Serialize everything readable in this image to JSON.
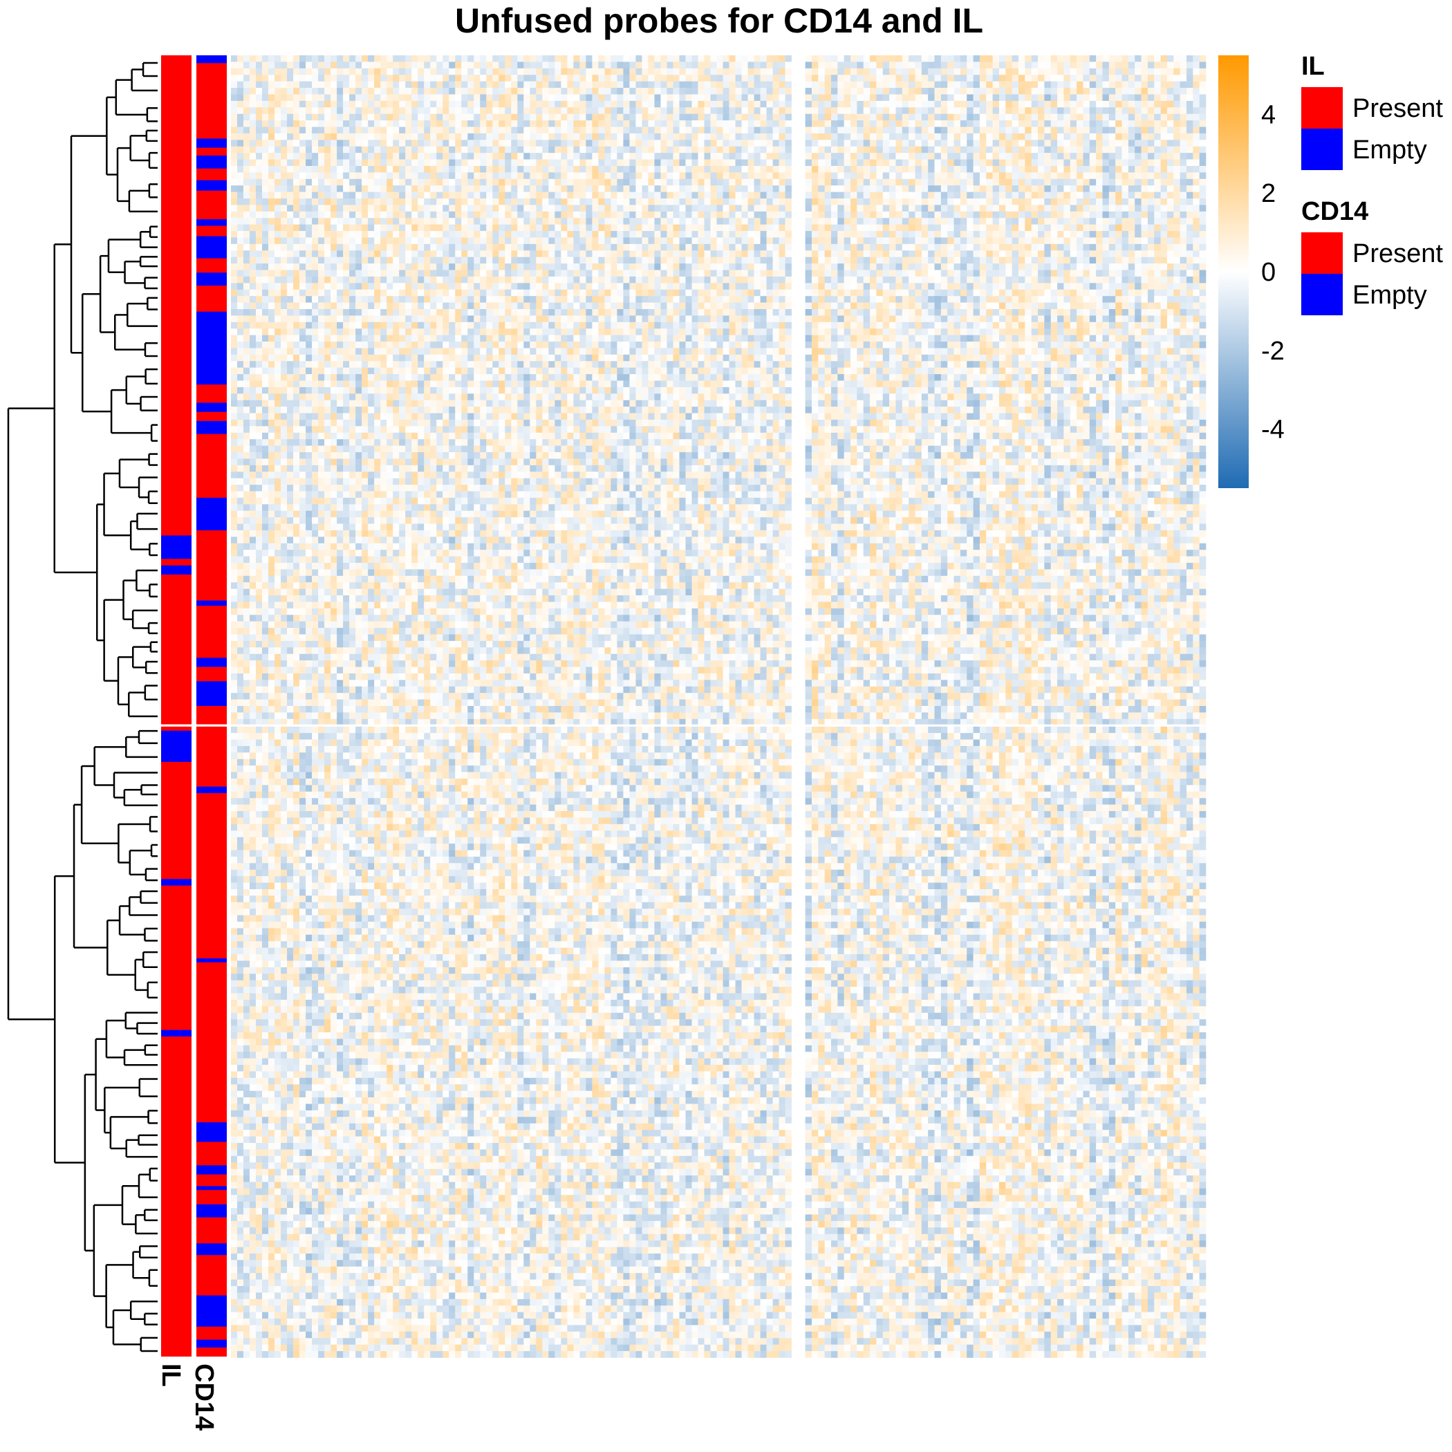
{
  "chart_data": {
    "type": "heatmap",
    "title": "Unfused probes for CD14 and IL",
    "color_scale": {
      "min": -5.5,
      "max": 5.5,
      "ticks": [
        4,
        2,
        0,
        -2,
        -4
      ],
      "tick_labels": [
        "4",
        "2",
        "0",
        "-2",
        "-4"
      ],
      "low_color": "#1F6BB3",
      "mid_color": "#FFFFFF",
      "high_color": "#FF9900"
    },
    "row_annotations": [
      {
        "name": "IL",
        "empty_row_ranges": [
          [
            0.369,
            0.387
          ],
          [
            0.392,
            0.399
          ],
          [
            0.519,
            0.543
          ],
          [
            0.633,
            0.638
          ],
          [
            0.749,
            0.754
          ]
        ]
      },
      {
        "name": "CD14",
        "empty_row_ranges": [
          [
            0.0,
            0.006
          ],
          [
            0.064,
            0.071
          ],
          [
            0.077,
            0.087
          ],
          [
            0.096,
            0.104
          ],
          [
            0.126,
            0.131
          ],
          [
            0.139,
            0.156
          ],
          [
            0.167,
            0.177
          ],
          [
            0.197,
            0.253
          ],
          [
            0.267,
            0.274
          ],
          [
            0.281,
            0.291
          ],
          [
            0.34,
            0.365
          ],
          [
            0.419,
            0.423
          ],
          [
            0.463,
            0.47
          ],
          [
            0.481,
            0.5
          ],
          [
            0.562,
            0.567
          ],
          [
            0.694,
            0.697
          ],
          [
            0.82,
            0.835
          ],
          [
            0.853,
            0.86
          ],
          [
            0.869,
            0.872
          ],
          [
            0.883,
            0.893
          ],
          [
            0.913,
            0.922
          ],
          [
            0.953,
            0.977
          ],
          [
            0.987,
            0.993
          ]
        ]
      }
    ],
    "row_split_at": 0.515,
    "column_split_at": 0.582,
    "legends": [
      {
        "title": "IL",
        "entries": [
          {
            "label": "Present",
            "color": "#FF0000"
          },
          {
            "label": "Empty",
            "color": "#0000FF"
          }
        ]
      },
      {
        "title": "CD14",
        "entries": [
          {
            "label": "Present",
            "color": "#FF0000"
          },
          {
            "label": "Empty",
            "color": "#0000FF"
          }
        ]
      }
    ],
    "has_row_dendrogram": true
  }
}
